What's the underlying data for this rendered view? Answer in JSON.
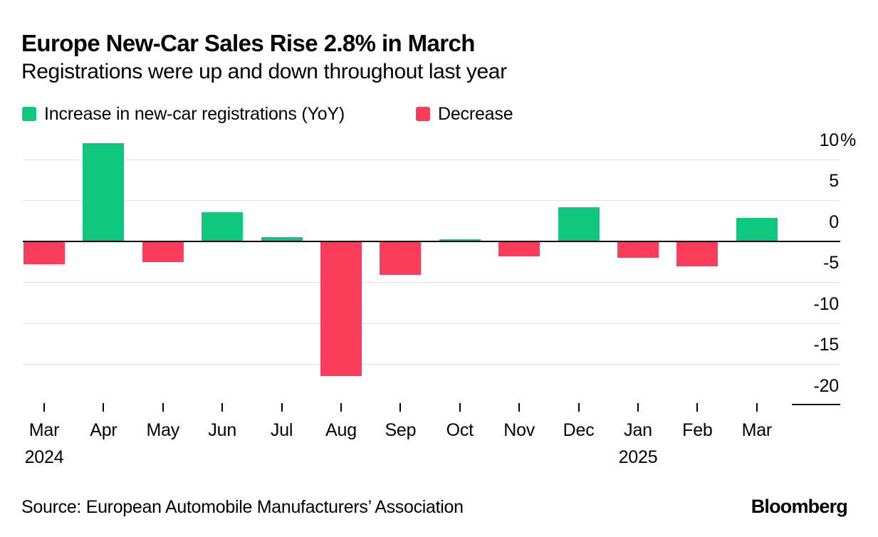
{
  "header": {
    "title": "Europe New-Car Sales Rise 2.8% in March",
    "subtitle": "Registrations were up and down throughout last year"
  },
  "legend": {
    "items": [
      {
        "key": "increase",
        "label": "Increase in new-car registrations (YoY)",
        "color": "#0fc67e"
      },
      {
        "key": "decrease",
        "label": "Decrease",
        "color": "#fb3d5c"
      }
    ]
  },
  "chart_data": {
    "type": "bar",
    "title": "Europe New-Car Sales Rise 2.8% in March",
    "subtitle": "Registrations were up and down throughout last year",
    "series_name": "New-car registrations, year-over-year change",
    "unit": "%",
    "categories": [
      "Mar",
      "Apr",
      "May",
      "Jun",
      "Jul",
      "Aug",
      "Sep",
      "Oct",
      "Nov",
      "Dec",
      "Jan",
      "Feb",
      "Mar"
    ],
    "category_years": {
      "0": "2024",
      "10": "2025"
    },
    "values": [
      -2.8,
      12.0,
      -2.6,
      3.5,
      0.5,
      -16.5,
      -4.1,
      0.2,
      -1.9,
      4.1,
      -2.0,
      -3.1,
      2.8
    ],
    "colors": {
      "increase": "#0fc67e",
      "decrease": "#fb3d5c"
    },
    "y_axis": {
      "side": "right",
      "range": [
        -20,
        13
      ],
      "ticks": [
        {
          "label": "10",
          "suffix": "%",
          "value": 10
        },
        {
          "label": "5",
          "value": 5
        },
        {
          "label": "0",
          "value": 0
        },
        {
          "label": "-5",
          "value": -5
        },
        {
          "label": "-10",
          "value": -10
        },
        {
          "label": "-15",
          "value": -15
        },
        {
          "label": "-20",
          "value": -20
        }
      ]
    },
    "grid": true,
    "baseline": 0,
    "legend_position": "top-left"
  },
  "footer": {
    "source": "Source: European Automobile Manufacturers’ Association",
    "logo": "Bloomberg"
  }
}
